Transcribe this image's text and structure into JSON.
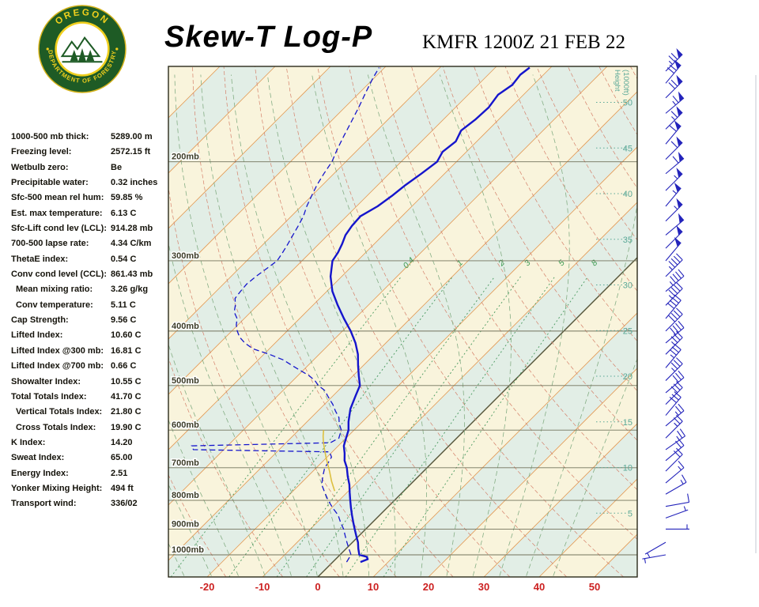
{
  "header": {
    "title": "Skew-T Log-P",
    "station_line": "KMFR 1200Z 21 FEB 22",
    "logo": {
      "org_top": "OREGON",
      "org_bottom": "DEPARTMENT OF FORESTRY"
    }
  },
  "stats": [
    {
      "label": "1000-500 mb thick:",
      "value": "5289.00 m",
      "indent": false
    },
    {
      "label": "Freezing level:",
      "value": "2572.15 ft",
      "indent": false
    },
    {
      "label": "Wetbulb zero:",
      "value": "Be",
      "indent": false
    },
    {
      "label": "Precipitable water:",
      "value": "0.32 inches",
      "indent": false
    },
    {
      "label": "Sfc-500 mean rel hum:",
      "value": "59.85 %",
      "indent": false
    },
    {
      "label": "Est. max temperature:",
      "value": "6.13 C",
      "indent": false
    },
    {
      "label": "Sfc-Lift cond lev (LCL):",
      "value": "914.28 mb",
      "indent": false
    },
    {
      "label": "700-500 lapse rate:",
      "value": "4.34 C/km",
      "indent": false
    },
    {
      "label": "ThetaE index:",
      "value": "0.54 C",
      "indent": false
    },
    {
      "label": "Conv cond level (CCL):",
      "value": "861.43 mb",
      "indent": false
    },
    {
      "label": "Mean mixing ratio:",
      "value": "3.26 g/kg",
      "indent": true
    },
    {
      "label": "Conv temperature:",
      "value": "5.11 C",
      "indent": true
    },
    {
      "label": "Cap Strength:",
      "value": "9.56 C",
      "indent": false
    },
    {
      "label": "Lifted Index:",
      "value": "10.60 C",
      "indent": false
    },
    {
      "label": "Lifted Index @300 mb:",
      "value": "16.81 C",
      "indent": false
    },
    {
      "label": "Lifted Index @700 mb:",
      "value": "0.66 C",
      "indent": false
    },
    {
      "label": "Showalter Index:",
      "value": "10.55 C",
      "indent": false
    },
    {
      "label": "Total Totals Index:",
      "value": "41.70 C",
      "indent": false
    },
    {
      "label": "Vertical Totals Index:",
      "value": "21.80 C",
      "indent": true
    },
    {
      "label": "Cross Totals Index:",
      "value": "19.90 C",
      "indent": true
    },
    {
      "label": "K Index:",
      "value": "14.20",
      "indent": false
    },
    {
      "label": "Sweat Index:",
      "value": "65.00",
      "indent": false
    },
    {
      "label": "Energy Index:",
      "value": "2.51",
      "indent": false
    },
    {
      "label": "Yonker Mixing Height:",
      "value": "494 ft",
      "indent": false
    },
    {
      "label": "Transport wind:",
      "value": "336/02",
      "indent": false
    }
  ],
  "chart_data": {
    "type": "skewt-log-p",
    "title": "Skew-T Log-P",
    "station": "KMFR 1200Z 21 FEB 22",
    "pressure_levels": [
      200,
      300,
      400,
      500,
      600,
      700,
      800,
      900,
      1000
    ],
    "pressure_labels": [
      "200mb",
      "300mb",
      "400mb",
      "500mb",
      "600mb",
      "700mb",
      "800mb",
      "900mb",
      "1000mb"
    ],
    "temp_axis_ticks": [
      -20,
      -10,
      0,
      10,
      20,
      30,
      40,
      50
    ],
    "height_axis": {
      "label_lines": [
        "Height",
        "(1000ft)"
      ],
      "ticks": [
        50,
        45,
        40,
        35,
        30,
        25,
        20,
        15,
        10,
        5
      ]
    },
    "mixing_ratio_labels": [
      0.4,
      1,
      2,
      3,
      5,
      8
    ],
    "temperature_trace": [
      [
        1030,
        5.0
      ],
      [
        1018,
        5.8
      ],
      [
        1008,
        5.2
      ],
      [
        1000,
        3.5
      ],
      [
        975,
        2.2
      ],
      [
        950,
        1.0
      ],
      [
        925,
        -0.5
      ],
      [
        900,
        -2.0
      ],
      [
        875,
        -3.5
      ],
      [
        850,
        -5.0
      ],
      [
        825,
        -6.5
      ],
      [
        800,
        -8.0
      ],
      [
        775,
        -9.5
      ],
      [
        750,
        -11.0
      ],
      [
        725,
        -12.8
      ],
      [
        700,
        -14.5
      ],
      [
        680,
        -16.2
      ],
      [
        660,
        -17.5
      ],
      [
        640,
        -19.0
      ],
      [
        620,
        -20.0
      ],
      [
        600,
        -21.0
      ],
      [
        580,
        -22.5
      ],
      [
        550,
        -24.5
      ],
      [
        520,
        -26.0
      ],
      [
        500,
        -27.0
      ],
      [
        480,
        -29.0
      ],
      [
        460,
        -31.0
      ],
      [
        440,
        -33.0
      ],
      [
        420,
        -35.5
      ],
      [
        400,
        -38.5
      ],
      [
        380,
        -42.0
      ],
      [
        360,
        -45.5
      ],
      [
        340,
        -49.0
      ],
      [
        320,
        -52.0
      ],
      [
        300,
        -54.5
      ],
      [
        290,
        -55.0
      ],
      [
        280,
        -55.8
      ],
      [
        270,
        -56.8
      ],
      [
        260,
        -57.3
      ],
      [
        250,
        -57.5
      ],
      [
        240,
        -56.2
      ],
      [
        230,
        -55.5
      ],
      [
        220,
        -55.0
      ],
      [
        210,
        -54.2
      ],
      [
        200,
        -53.5
      ],
      [
        192,
        -54.3
      ],
      [
        184,
        -53.8
      ],
      [
        176,
        -54.8
      ],
      [
        168,
        -54.2
      ],
      [
        160,
        -54.0
      ],
      [
        152,
        -54.6
      ],
      [
        146,
        -53.8
      ],
      [
        140,
        -54.2
      ],
      [
        136,
        -53.8
      ]
    ],
    "dewpoint_trace": [
      [
        1030,
        2.5
      ],
      [
        1000,
        2.0
      ],
      [
        975,
        0.5
      ],
      [
        950,
        -1.0
      ],
      [
        925,
        -2.5
      ],
      [
        900,
        -4.0
      ],
      [
        875,
        -5.8
      ],
      [
        850,
        -7.5
      ],
      [
        825,
        -9.8
      ],
      [
        800,
        -12.0
      ],
      [
        775,
        -14.0
      ],
      [
        750,
        -16.0
      ],
      [
        725,
        -17.3
      ],
      [
        700,
        -18.5
      ],
      [
        685,
        -18.8
      ],
      [
        670,
        -19.2
      ],
      [
        656,
        -20.5
      ],
      [
        650,
        -45.5
      ],
      [
        640,
        -46.5
      ],
      [
        632,
        -22.0
      ],
      [
        620,
        -21.3
      ],
      [
        610,
        -21.8
      ],
      [
        600,
        -22.3
      ],
      [
        585,
        -23.8
      ],
      [
        570,
        -25.0
      ],
      [
        555,
        -26.8
      ],
      [
        540,
        -28.5
      ],
      [
        525,
        -30.5
      ],
      [
        510,
        -32.5
      ],
      [
        500,
        -34.5
      ],
      [
        490,
        -36.0
      ],
      [
        480,
        -38.0
      ],
      [
        470,
        -40.5
      ],
      [
        460,
        -43.0
      ],
      [
        450,
        -45.5
      ],
      [
        440,
        -49.0
      ],
      [
        430,
        -53.0
      ],
      [
        420,
        -55.5
      ],
      [
        410,
        -57.5
      ],
      [
        400,
        -59.0
      ],
      [
        390,
        -60.3
      ],
      [
        380,
        -61.3
      ],
      [
        370,
        -63.0
      ],
      [
        360,
        -64.0
      ],
      [
        350,
        -65.3
      ],
      [
        340,
        -65.6
      ],
      [
        330,
        -65.8
      ],
      [
        320,
        -65.5
      ],
      [
        310,
        -65.0
      ],
      [
        300,
        -64.5
      ],
      [
        290,
        -65.0
      ],
      [
        280,
        -65.6
      ],
      [
        270,
        -66.3
      ],
      [
        260,
        -67.0
      ],
      [
        250,
        -67.8
      ],
      [
        240,
        -69.0
      ],
      [
        230,
        -70.0
      ],
      [
        220,
        -71.0
      ],
      [
        210,
        -71.8
      ],
      [
        200,
        -72.5
      ],
      [
        190,
        -73.8
      ],
      [
        180,
        -75.0
      ],
      [
        170,
        -76.2
      ],
      [
        160,
        -77.5
      ],
      [
        150,
        -79.0
      ],
      [
        142,
        -80.2
      ],
      [
        136,
        -81.0
      ]
    ],
    "parcel_trace": [
      [
        770,
        -12.5
      ],
      [
        740,
        -14.8
      ],
      [
        710,
        -17.0
      ],
      [
        690,
        -18.6
      ],
      [
        670,
        -20.2
      ],
      [
        650,
        -21.8
      ],
      [
        630,
        -23.4
      ],
      [
        615,
        -24.5
      ],
      [
        600,
        -25.5
      ]
    ],
    "wind_barb_format": [
      "pressure_mb",
      "direction_deg",
      "speed_kt"
    ],
    "wind_barbs": [
      [
        1000,
        260,
        3
      ],
      [
        950,
        240,
        4
      ],
      [
        900,
        90,
        5
      ],
      [
        860,
        70,
        8
      ],
      [
        820,
        80,
        10
      ],
      [
        780,
        60,
        15
      ],
      [
        745,
        50,
        15
      ],
      [
        710,
        45,
        20
      ],
      [
        680,
        50,
        20
      ],
      [
        650,
        55,
        25
      ],
      [
        620,
        45,
        25
      ],
      [
        590,
        50,
        25
      ],
      [
        565,
        40,
        30
      ],
      [
        540,
        45,
        30
      ],
      [
        515,
        50,
        30
      ],
      [
        490,
        45,
        35
      ],
      [
        465,
        40,
        35
      ],
      [
        440,
        45,
        35
      ],
      [
        420,
        50,
        40
      ],
      [
        400,
        45,
        40
      ],
      [
        380,
        40,
        40
      ],
      [
        360,
        45,
        45
      ],
      [
        340,
        50,
        45
      ],
      [
        320,
        45,
        45
      ],
      [
        300,
        40,
        50
      ],
      [
        285,
        45,
        50
      ],
      [
        270,
        50,
        50
      ],
      [
        255,
        45,
        55
      ],
      [
        240,
        40,
        55
      ],
      [
        225,
        45,
        55
      ],
      [
        210,
        50,
        60
      ],
      [
        198,
        45,
        60
      ],
      [
        186,
        40,
        60
      ],
      [
        175,
        45,
        65
      ],
      [
        164,
        50,
        65
      ],
      [
        154,
        45,
        70
      ],
      [
        145,
        40,
        70
      ],
      [
        138,
        45,
        75
      ]
    ],
    "colors": {
      "band_cream": "#f9f4dc",
      "band_teal": "#e2eee6",
      "isotherm": "#e39a55",
      "zero_isotherm": "#55553a",
      "dry_adiabat": "#d4806a",
      "moist_adiabat": "#85ae85",
      "mixing_ratio": "#4a9a60",
      "mixing_label": "#3a9a50",
      "pressure_line": "#73735c",
      "pressure_text": "#3c3c28",
      "height": "#5aa897",
      "trace": "#1515cc",
      "parcel": "#ddc040",
      "temp_tick": "#cc2020",
      "barb": "#2424bb",
      "border": "#2a2a1a",
      "logo_green": "#1e5b25",
      "logo_yellow": "#f0cf1d"
    }
  }
}
